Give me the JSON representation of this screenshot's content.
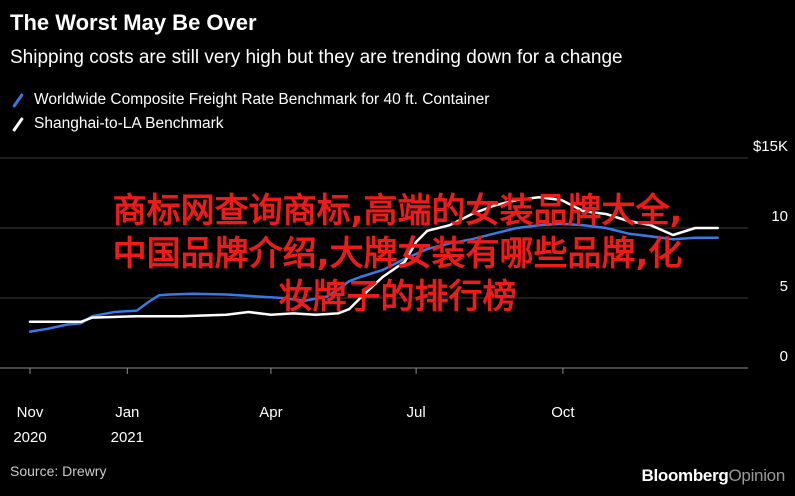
{
  "header": {
    "title": "The Worst May Be Over",
    "subtitle": "Shipping costs are still very high but they are trending down for a change"
  },
  "footer": {
    "source": "Source: Drewry",
    "brand_main": "Bloomberg",
    "brand_suffix": "Opinion"
  },
  "overlay": {
    "line1": "商标网查询商标,高端的女装品牌大全,",
    "line2": "中国品牌介绍,大牌女装有哪些品牌,化",
    "line3": "妆牌子的排行榜",
    "color": "#ee1b1b"
  },
  "chart_data": {
    "type": "line",
    "title": "The Worst May Be Over",
    "subtitle": "Shipping costs are still very high but they are trending down for a change",
    "ylabel": "",
    "xlabel": "",
    "ylim": [
      0,
      15
    ],
    "y_ticks": [
      0,
      5,
      10,
      15
    ],
    "y_tick_labels": [
      "0",
      "5",
      "10",
      "$15K"
    ],
    "y_axis_position": "right",
    "x_ticks": [
      {
        "date": "2020-11-01",
        "label": [
          "Nov",
          "2020"
        ]
      },
      {
        "date": "2021-01-01",
        "label": [
          "Jan",
          "2021"
        ]
      },
      {
        "date": "2021-04-01",
        "label": [
          "Apr"
        ]
      },
      {
        "date": "2021-07-01",
        "label": [
          "Jul"
        ]
      },
      {
        "date": "2021-10-01",
        "label": [
          "Oct"
        ]
      }
    ],
    "xlim": [
      "2020-11-01",
      "2022-01-20"
    ],
    "grid": "horizontal",
    "legend_position": "top-left",
    "series": [
      {
        "name": "Worldwide Composite Freight Rate Benchmark for 40 ft. Container",
        "color": "#3a78e4",
        "points": [
          [
            "2020-11-01",
            2.6
          ],
          [
            "2020-11-12",
            2.8
          ],
          [
            "2020-11-24",
            3.1
          ],
          [
            "2020-12-03",
            3.2
          ],
          [
            "2020-12-10",
            3.7
          ],
          [
            "2020-12-24",
            4.0
          ],
          [
            "2021-01-07",
            4.1
          ],
          [
            "2021-01-14",
            4.7
          ],
          [
            "2021-01-21",
            5.2
          ],
          [
            "2021-01-28",
            5.25
          ],
          [
            "2021-02-11",
            5.3
          ],
          [
            "2021-03-04",
            5.25
          ],
          [
            "2021-03-25",
            5.1
          ],
          [
            "2021-04-08",
            5.0
          ],
          [
            "2021-04-22",
            4.8
          ],
          [
            "2021-05-06",
            5.1
          ],
          [
            "2021-05-13",
            5.6
          ],
          [
            "2021-05-20",
            6.2
          ],
          [
            "2021-05-27",
            6.5
          ],
          [
            "2021-06-10",
            7.0
          ],
          [
            "2021-06-24",
            7.8
          ],
          [
            "2021-07-08",
            8.5
          ],
          [
            "2021-07-22",
            8.9
          ],
          [
            "2021-08-05",
            9.2
          ],
          [
            "2021-08-19",
            9.6
          ],
          [
            "2021-09-02",
            10.0
          ],
          [
            "2021-09-16",
            10.2
          ],
          [
            "2021-09-30",
            10.3
          ],
          [
            "2021-10-14",
            10.2
          ],
          [
            "2021-10-28",
            10.0
          ],
          [
            "2021-11-11",
            9.6
          ],
          [
            "2021-11-25",
            9.4
          ],
          [
            "2021-12-09",
            9.2
          ],
          [
            "2021-12-23",
            9.3
          ],
          [
            "2022-01-06",
            9.3
          ]
        ]
      },
      {
        "name": "Shanghai-to-LA Benchmark",
        "color": "#ffffff",
        "points": [
          [
            "2020-11-01",
            3.3
          ],
          [
            "2020-12-03",
            3.3
          ],
          [
            "2020-12-10",
            3.6
          ],
          [
            "2021-01-07",
            3.7
          ],
          [
            "2021-02-04",
            3.7
          ],
          [
            "2021-03-04",
            3.8
          ],
          [
            "2021-03-18",
            4.0
          ],
          [
            "2021-04-01",
            3.8
          ],
          [
            "2021-04-15",
            3.9
          ],
          [
            "2021-04-29",
            3.8
          ],
          [
            "2021-05-13",
            3.9
          ],
          [
            "2021-05-20",
            4.2
          ],
          [
            "2021-05-27",
            5.0
          ],
          [
            "2021-06-10",
            6.5
          ],
          [
            "2021-06-24",
            7.6
          ],
          [
            "2021-07-01",
            9.0
          ],
          [
            "2021-07-08",
            9.8
          ],
          [
            "2021-07-22",
            10.2
          ],
          [
            "2021-08-05",
            11.0
          ],
          [
            "2021-08-19",
            11.6
          ],
          [
            "2021-09-02",
            12.0
          ],
          [
            "2021-09-16",
            12.2
          ],
          [
            "2021-09-30",
            12.0
          ],
          [
            "2021-10-14",
            11.2
          ],
          [
            "2021-10-28",
            11.0
          ],
          [
            "2021-11-11",
            10.5
          ],
          [
            "2021-11-25",
            10.2
          ],
          [
            "2021-12-09",
            9.5
          ],
          [
            "2021-12-23",
            10.0
          ],
          [
            "2022-01-06",
            10.0
          ]
        ]
      }
    ]
  }
}
